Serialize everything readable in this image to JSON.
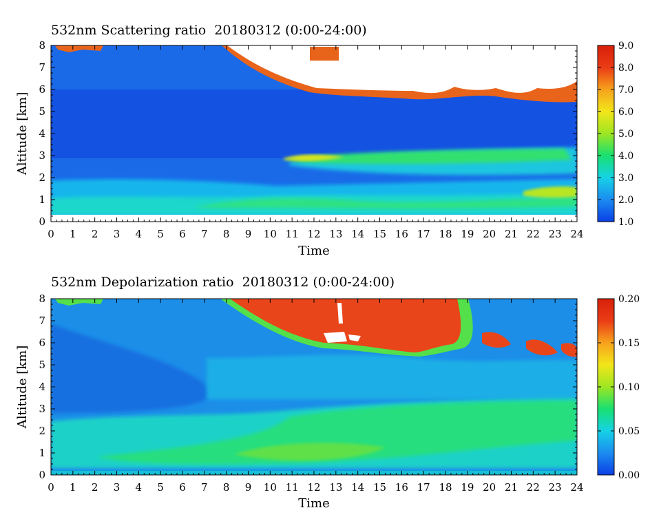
{
  "chart_data": [
    {
      "type": "heatmap",
      "title": "532nm Scattering ratio  20180312 (0:00-24:00)",
      "xlabel": "Time",
      "ylabel": "Altitude [km]",
      "xlim": [
        0,
        24
      ],
      "ylim": [
        0,
        8
      ],
      "x_ticks": [
        "0",
        "1",
        "2",
        "3",
        "4",
        "5",
        "6",
        "7",
        "8",
        "9",
        "10",
        "11",
        "12",
        "13",
        "14",
        "15",
        "16",
        "17",
        "18",
        "19",
        "20",
        "21",
        "22",
        "23",
        "24"
      ],
      "y_ticks": [
        "0",
        "1",
        "2",
        "3",
        "4",
        "5",
        "6",
        "7",
        "8"
      ],
      "colorbar": {
        "min": 1.0,
        "max": 9.0,
        "ticks": [
          "1.0",
          "2.0",
          "3.0",
          "4.0",
          "5.0",
          "6.0",
          "7.0",
          "8.0",
          "9.0"
        ],
        "colormap": [
          "#0a3fe6",
          "#1c8cf0",
          "#16d2e6",
          "#18e070",
          "#9ee622",
          "#f2e61a",
          "#f7a21c",
          "#ea3c16",
          "#d8200a"
        ]
      },
      "features": [
        {
          "name": "near-surface mixed layer",
          "x": [
            0,
            24
          ],
          "y": [
            0.2,
            1.6
          ],
          "value": 3.3
        },
        {
          "name": "elevated aerosol layer",
          "x": [
            10.5,
            24
          ],
          "y": [
            2.4,
            3.3
          ],
          "value": 4.6
        },
        {
          "name": "high cloud (saturated)",
          "x": [
            7.8,
            24
          ],
          "y": [
            5.6,
            8.0
          ],
          "value": "> 9.0"
        }
      ]
    },
    {
      "type": "heatmap",
      "title": "532nm Depolarization ratio  20180312 (0:00-24:00)",
      "xlabel": "Time",
      "ylabel": "Altitude [km]",
      "xlim": [
        0,
        24
      ],
      "ylim": [
        0,
        8
      ],
      "x_ticks": [
        "0",
        "1",
        "2",
        "3",
        "4",
        "5",
        "6",
        "7",
        "8",
        "9",
        "10",
        "11",
        "12",
        "13",
        "14",
        "15",
        "16",
        "17",
        "18",
        "19",
        "20",
        "21",
        "22",
        "23",
        "24"
      ],
      "y_ticks": [
        "0",
        "1",
        "2",
        "3",
        "4",
        "5",
        "6",
        "7",
        "8"
      ],
      "colorbar": {
        "min": 0.0,
        "max": 0.2,
        "ticks": [
          "0.00",
          "0.05",
          "0.10",
          "0.15",
          "0.20"
        ],
        "colormap": [
          "#0a3fe6",
          "#1c8cf0",
          "#16d2e6",
          "#18e070",
          "#9ee622",
          "#f2e61a",
          "#f7a21c",
          "#ea3c16",
          "#d8200a"
        ]
      },
      "features": [
        {
          "name": "lower aerosol layer",
          "x": [
            0,
            24
          ],
          "y": [
            0.3,
            2.5
          ],
          "value": 0.075
        },
        {
          "name": "elevated dust layer",
          "x": [
            11,
            24
          ],
          "y": [
            2.4,
            3.3
          ],
          "value": 0.085
        },
        {
          "name": "high ice cloud",
          "x": [
            8,
            24
          ],
          "y": [
            5.4,
            8.0
          ],
          "value": 0.19
        }
      ]
    }
  ]
}
